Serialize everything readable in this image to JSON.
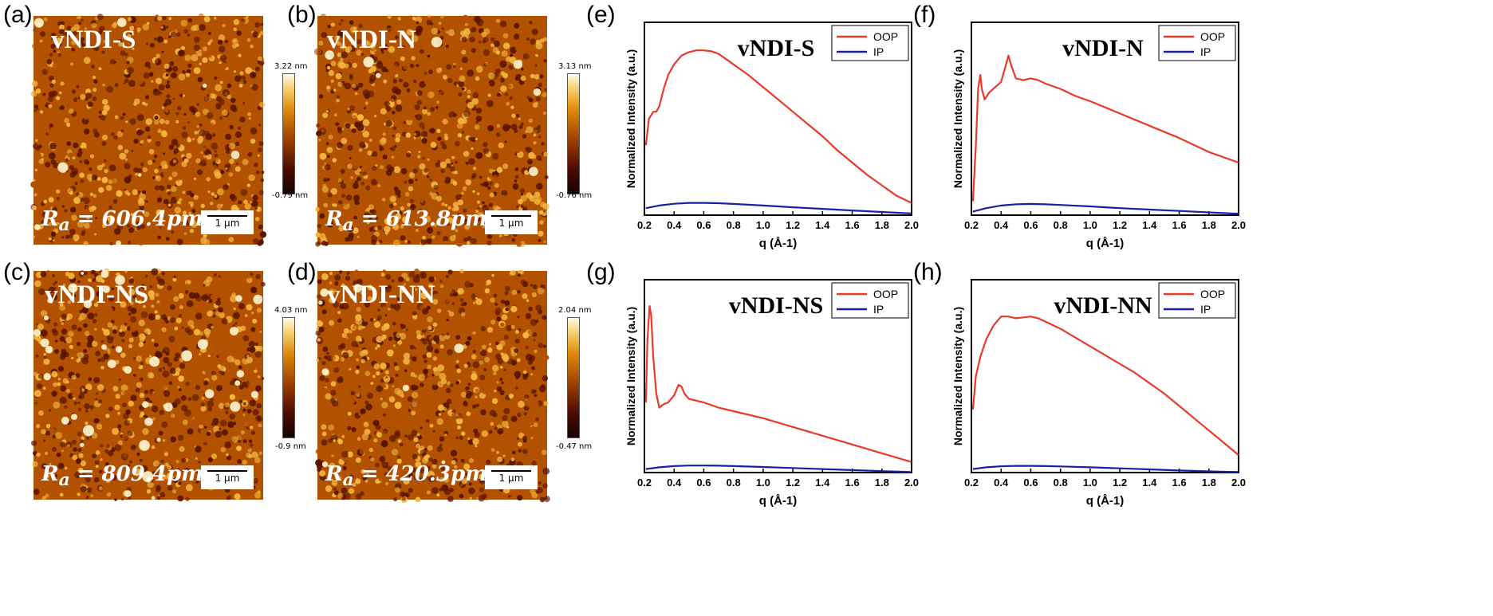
{
  "figure_labels": [
    "(a)",
    "(b)",
    "(c)",
    "(d)",
    "(e)",
    "(f)",
    "(g)",
    "(h)"
  ],
  "afm_panels": [
    {
      "name": "vNDI-S",
      "ra_symbol": "R",
      "ra_subscript": "a",
      "ra_value": " = 606.4pm",
      "scale": "1 µm",
      "cbar_max": "3.22 nm",
      "cbar_min": "-0.79 nm"
    },
    {
      "name": "vNDI-N",
      "ra_symbol": "R",
      "ra_subscript": "a",
      "ra_value": " = 613.8pm",
      "scale": "1 µm",
      "cbar_max": "3.13 nm",
      "cbar_min": "-0.76 nm"
    },
    {
      "name": "vNDI-NS",
      "ra_symbol": "R",
      "ra_subscript": "a",
      "ra_value": " = 809.4pm",
      "scale": "1 µm",
      "cbar_max": "4.03 nm",
      "cbar_min": "-0.9 nm"
    },
    {
      "name": "vNDI-NN",
      "ra_symbol": "R",
      "ra_subscript": "a",
      "ra_value": " = 420.3pm",
      "scale": "1 µm",
      "cbar_max": "2.04 nm",
      "cbar_min": "-0.47 nm"
    }
  ],
  "colors": {
    "oop": "#e8392a",
    "ip": "#1c1fa6",
    "afm_dark": "#5a1500",
    "afm_mid": "#b25200",
    "afm_light": "#f4b640",
    "afm_bright": "#fff6d2"
  },
  "chart_data": [
    {
      "type": "line",
      "title": "vNDI-S",
      "xlabel": "q (Å-1)",
      "ylabel": "Normalized Intensity (a.u.)",
      "xlim": [
        0.2,
        2.0
      ],
      "ylim": [
        0,
        1.1
      ],
      "xticks": [
        "0.2",
        "0.4",
        "0.6",
        "0.8",
        "1.0",
        "1.2",
        "1.4",
        "1.6",
        "1.8",
        "2.0"
      ],
      "legend": "top-right",
      "y_tick_labels": false,
      "series": [
        {
          "name": "OOP",
          "color": "#e8392a",
          "x": [
            0.21,
            0.23,
            0.26,
            0.28,
            0.3,
            0.33,
            0.36,
            0.4,
            0.45,
            0.5,
            0.55,
            0.6,
            0.65,
            0.7,
            0.75,
            0.8,
            0.9,
            1.0,
            1.1,
            1.2,
            1.3,
            1.4,
            1.5,
            1.6,
            1.7,
            1.8,
            1.9,
            2.0
          ],
          "y": [
            0.4,
            0.55,
            0.59,
            0.59,
            0.62,
            0.72,
            0.8,
            0.86,
            0.91,
            0.93,
            0.94,
            0.94,
            0.935,
            0.92,
            0.89,
            0.86,
            0.8,
            0.73,
            0.66,
            0.59,
            0.52,
            0.45,
            0.37,
            0.3,
            0.23,
            0.17,
            0.11,
            0.07
          ]
        },
        {
          "name": "IP",
          "color": "#1c1fa6",
          "x": [
            0.21,
            0.3,
            0.4,
            0.5,
            0.6,
            0.7,
            0.8,
            1.0,
            1.2,
            1.4,
            1.6,
            1.8,
            2.0
          ],
          "y": [
            0.04,
            0.055,
            0.065,
            0.07,
            0.07,
            0.068,
            0.064,
            0.055,
            0.045,
            0.036,
            0.027,
            0.018,
            0.01
          ]
        }
      ]
    },
    {
      "type": "line",
      "title": "vNDI-N",
      "xlabel": "q (Å-1)",
      "ylabel": "Normalized Intensity (a.u.)",
      "xlim": [
        0.2,
        2.0
      ],
      "ylim": [
        0,
        1.1
      ],
      "xticks": [
        "0.2",
        "0.4",
        "0.6",
        "0.8",
        "1.0",
        "1.2",
        "1.4",
        "1.6",
        "1.8",
        "2.0"
      ],
      "legend": "top-right",
      "y_tick_labels": false,
      "series": [
        {
          "name": "OOP",
          "color": "#e8392a",
          "x": [
            0.21,
            0.23,
            0.245,
            0.26,
            0.27,
            0.29,
            0.32,
            0.36,
            0.4,
            0.43,
            0.45,
            0.47,
            0.5,
            0.55,
            0.6,
            0.65,
            0.7,
            0.8,
            0.9,
            1.0,
            1.2,
            1.4,
            1.6,
            1.8,
            2.0
          ],
          "y": [
            0.08,
            0.4,
            0.72,
            0.8,
            0.72,
            0.66,
            0.7,
            0.73,
            0.76,
            0.85,
            0.91,
            0.85,
            0.78,
            0.77,
            0.78,
            0.77,
            0.75,
            0.72,
            0.68,
            0.65,
            0.58,
            0.51,
            0.44,
            0.36,
            0.3
          ]
        },
        {
          "name": "IP",
          "color": "#1c1fa6",
          "x": [
            0.21,
            0.3,
            0.4,
            0.5,
            0.6,
            0.7,
            0.8,
            1.0,
            1.2,
            1.4,
            1.6,
            1.8,
            2.0
          ],
          "y": [
            0.02,
            0.04,
            0.055,
            0.062,
            0.064,
            0.062,
            0.058,
            0.05,
            0.04,
            0.032,
            0.024,
            0.016,
            0.008
          ]
        }
      ]
    },
    {
      "type": "line",
      "title": "vNDI-NS",
      "xlabel": "q (Å-1)",
      "ylabel": "Normalized Intensity (a.u.)",
      "xlim": [
        0.2,
        2.0
      ],
      "ylim": [
        0,
        1.1
      ],
      "xticks": [
        "0.2",
        "0.4",
        "0.6",
        "0.8",
        "1.0",
        "1.2",
        "1.4",
        "1.6",
        "1.8",
        "2.0"
      ],
      "legend": "top-right",
      "y_tick_labels": false,
      "series": [
        {
          "name": "OOP",
          "color": "#e8392a",
          "x": [
            0.21,
            0.22,
            0.235,
            0.245,
            0.26,
            0.28,
            0.3,
            0.33,
            0.36,
            0.4,
            0.43,
            0.45,
            0.47,
            0.5,
            0.55,
            0.6,
            0.7,
            0.8,
            1.0,
            1.2,
            1.4,
            1.6,
            1.8,
            2.0
          ],
          "y": [
            0.4,
            0.75,
            0.95,
            0.9,
            0.65,
            0.45,
            0.37,
            0.39,
            0.4,
            0.44,
            0.5,
            0.49,
            0.45,
            0.42,
            0.41,
            0.4,
            0.37,
            0.35,
            0.31,
            0.26,
            0.21,
            0.16,
            0.11,
            0.06
          ]
        },
        {
          "name": "IP",
          "color": "#1c1fa6",
          "x": [
            0.21,
            0.3,
            0.4,
            0.5,
            0.6,
            0.7,
            0.8,
            1.0,
            1.2,
            1.4,
            1.6,
            1.8,
            2.0
          ],
          "y": [
            0.02,
            0.03,
            0.037,
            0.04,
            0.04,
            0.039,
            0.037,
            0.032,
            0.026,
            0.02,
            0.014,
            0.008,
            0.003
          ]
        }
      ]
    },
    {
      "type": "line",
      "title": "vNDI-NN",
      "xlabel": "q (Å-1)",
      "ylabel": "Normalized Intensity (a.u.)",
      "xlim": [
        0.2,
        2.0
      ],
      "ylim": [
        0,
        1.1
      ],
      "xticks": [
        "0.2",
        "0.4",
        "0.6",
        "0.8",
        "1.0",
        "1.2",
        "1.4",
        "1.6",
        "1.8",
        "2.0"
      ],
      "legend": "top-right",
      "y_tick_labels": false,
      "series": [
        {
          "name": "OOP",
          "color": "#e8392a",
          "x": [
            0.21,
            0.23,
            0.26,
            0.3,
            0.35,
            0.4,
            0.45,
            0.5,
            0.55,
            0.6,
            0.65,
            0.7,
            0.8,
            0.9,
            1.0,
            1.1,
            1.2,
            1.3,
            1.4,
            1.5,
            1.6,
            1.7,
            1.8,
            1.9,
            2.0
          ],
          "y": [
            0.36,
            0.55,
            0.66,
            0.76,
            0.84,
            0.89,
            0.89,
            0.88,
            0.885,
            0.89,
            0.88,
            0.86,
            0.82,
            0.77,
            0.72,
            0.67,
            0.62,
            0.57,
            0.51,
            0.45,
            0.38,
            0.31,
            0.24,
            0.17,
            0.1
          ]
        },
        {
          "name": "IP",
          "color": "#1c1fa6",
          "x": [
            0.21,
            0.3,
            0.4,
            0.5,
            0.6,
            0.7,
            0.8,
            1.0,
            1.2,
            1.4,
            1.6,
            1.8,
            2.0
          ],
          "y": [
            0.02,
            0.03,
            0.036,
            0.038,
            0.038,
            0.037,
            0.035,
            0.03,
            0.024,
            0.018,
            0.012,
            0.007,
            0.003
          ]
        }
      ]
    }
  ]
}
